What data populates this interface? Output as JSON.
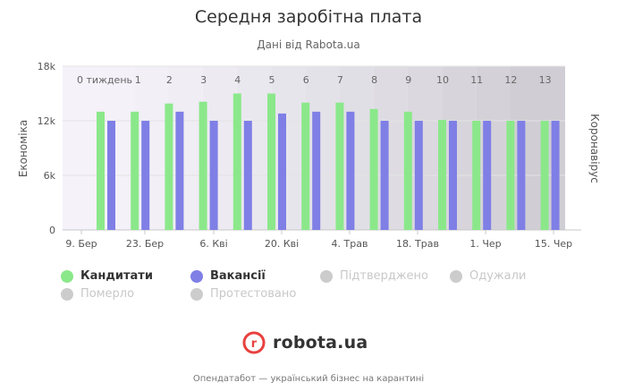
{
  "header": {
    "title": "Середня заробітна плата",
    "subtitle": "Дані від Rabota.ua"
  },
  "colors": {
    "candidates": "#8be88a",
    "vacancies": "#7f7fe6",
    "inactive": "#cccccc",
    "brand_red": "#e8413f"
  },
  "legend": [
    {
      "label": "Кандитати",
      "color": "#8be88a",
      "active": true
    },
    {
      "label": "Вакансії",
      "color": "#7f7fe6",
      "active": true
    },
    {
      "label": "Підтверджено",
      "color": "#cccccc",
      "active": false
    },
    {
      "label": "Одужали",
      "color": "#cccccc",
      "active": false
    },
    {
      "label": "Померло",
      "color": "#cccccc",
      "active": false
    },
    {
      "label": "Протестовано",
      "color": "#cccccc",
      "active": false
    }
  ],
  "brand": {
    "logo_letter": "r",
    "name": "robota.ua"
  },
  "footer": {
    "credit": "Опендатабот — український бізнес на карантині"
  },
  "chart_data": {
    "type": "bar",
    "title": "Середня заробітна плата",
    "subtitle": "Дані від Rabota.ua",
    "ylabel": "Економіка",
    "ylabel_right": "Коронавірус",
    "ylim": [
      0,
      18000
    ],
    "y_ticks": [
      0,
      6000,
      12000,
      18000
    ],
    "y_tick_labels": [
      "0",
      "6k",
      "12k",
      "18k"
    ],
    "x_tick_labels": [
      "9. Бер",
      "23. Бер",
      "6. Кві",
      "20. Кві",
      "4. Трав",
      "18. Трав",
      "1. Чер",
      "15. Чер"
    ],
    "week_labels": [
      "0 тиждень",
      "1",
      "2",
      "3",
      "4",
      "5",
      "6",
      "7",
      "8",
      "9",
      "10",
      "11",
      "12",
      "13"
    ],
    "legend_position": "bottom-left",
    "grid": true,
    "series": [
      {
        "name": "Кандитати",
        "values": [
          13000,
          13000,
          13900,
          14100,
          15000,
          15000,
          14000,
          14000,
          13300,
          13000,
          12100,
          12000,
          12000,
          12000
        ]
      },
      {
        "name": "Вакансії",
        "values": [
          12000,
          12000,
          13000,
          12000,
          12000,
          12800,
          13000,
          13000,
          12000,
          12000,
          12000,
          12000,
          12000,
          12000
        ]
      }
    ]
  }
}
